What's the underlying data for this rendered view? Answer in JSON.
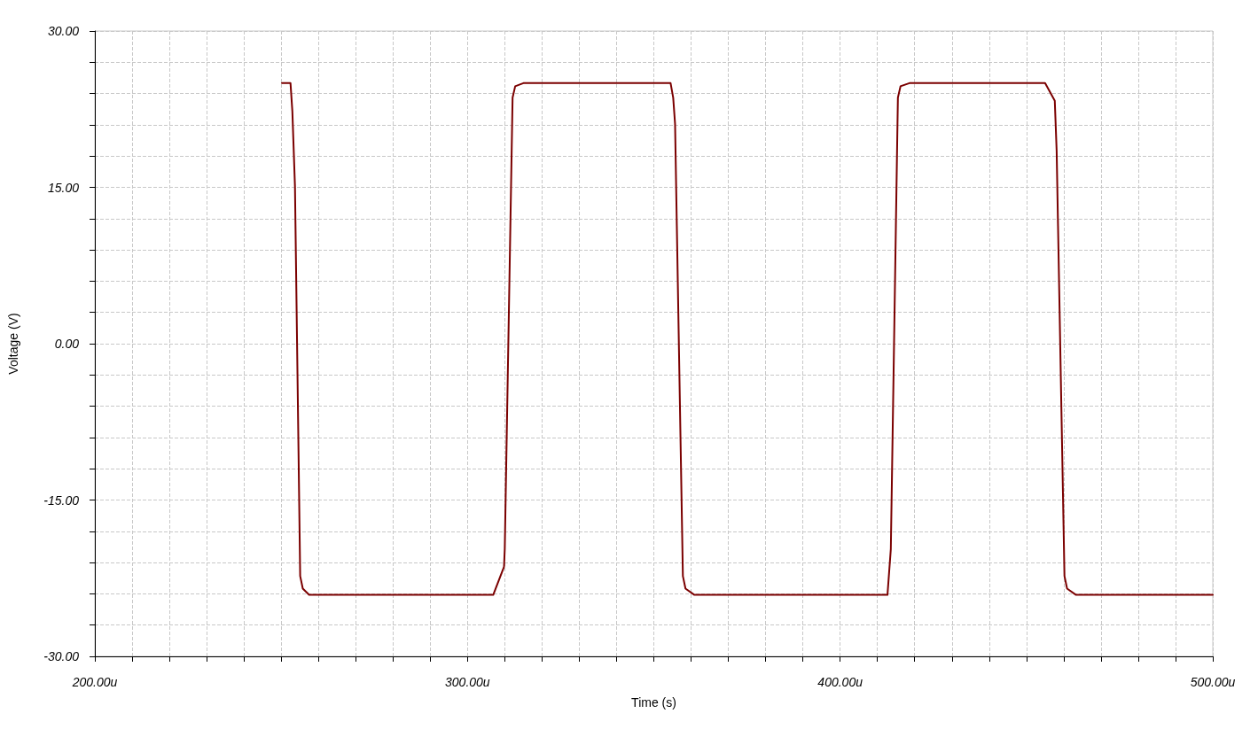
{
  "chart_data": {
    "type": "line",
    "xlabel": "Time (s)",
    "ylabel": "Voltage (V)",
    "xlim": [
      200,
      500
    ],
    "xticks": [
      {
        "value": 200,
        "label": "200.00u"
      },
      {
        "value": 210,
        "label": null
      },
      {
        "value": 220,
        "label": null
      },
      {
        "value": 230,
        "label": null
      },
      {
        "value": 240,
        "label": null
      },
      {
        "value": 250,
        "label": null
      },
      {
        "value": 260,
        "label": null
      },
      {
        "value": 270,
        "label": null
      },
      {
        "value": 280,
        "label": null
      },
      {
        "value": 290,
        "label": null
      },
      {
        "value": 300,
        "label": "300.00u"
      },
      {
        "value": 310,
        "label": null
      },
      {
        "value": 320,
        "label": null
      },
      {
        "value": 330,
        "label": null
      },
      {
        "value": 340,
        "label": null
      },
      {
        "value": 350,
        "label": null
      },
      {
        "value": 360,
        "label": null
      },
      {
        "value": 370,
        "label": null
      },
      {
        "value": 380,
        "label": null
      },
      {
        "value": 390,
        "label": null
      },
      {
        "value": 400,
        "label": "400.00u"
      },
      {
        "value": 410,
        "label": null
      },
      {
        "value": 420,
        "label": null
      },
      {
        "value": 430,
        "label": null
      },
      {
        "value": 440,
        "label": null
      },
      {
        "value": 450,
        "label": null
      },
      {
        "value": 460,
        "label": null
      },
      {
        "value": 470,
        "label": null
      },
      {
        "value": 480,
        "label": null
      },
      {
        "value": 490,
        "label": null
      },
      {
        "value": 500,
        "label": "500.00u"
      }
    ],
    "ylim": [
      -30,
      30
    ],
    "yticks": [
      {
        "value": -30,
        "label": "-30.00"
      },
      {
        "value": -27,
        "label": null
      },
      {
        "value": -24,
        "label": null
      },
      {
        "value": -21,
        "label": null
      },
      {
        "value": -18,
        "label": null
      },
      {
        "value": -15,
        "label": "-15.00"
      },
      {
        "value": -12,
        "label": null
      },
      {
        "value": -9,
        "label": null
      },
      {
        "value": -6,
        "label": null
      },
      {
        "value": -3,
        "label": null
      },
      {
        "value": 0,
        "label": "0.00"
      },
      {
        "value": 3,
        "label": null
      },
      {
        "value": 6,
        "label": null
      },
      {
        "value": 9,
        "label": null
      },
      {
        "value": 12,
        "label": null
      },
      {
        "value": 15,
        "label": "15.00"
      },
      {
        "value": 18,
        "label": null
      },
      {
        "value": 21,
        "label": null
      },
      {
        "value": 24,
        "label": null
      },
      {
        "value": 27,
        "label": null
      },
      {
        "value": 30,
        "label": "30.00"
      }
    ],
    "grid": true,
    "marker": "none",
    "line_style": "solid",
    "series": [
      {
        "color": "#7b0000",
        "x": [
          250.2,
          252.5,
          253.0,
          253.7,
          255.1,
          255.8,
          257.5,
          306.9,
          309.8,
          310.0,
          312.1,
          312.8,
          315.0,
          354.5,
          355.2,
          355.7,
          357.8,
          358.5,
          360.9,
          412.7,
          413.6,
          415.5,
          416.2,
          418.6,
          455.0,
          457.6,
          458.1,
          460.2,
          460.9,
          463.3,
          500
        ],
        "values": [
          25,
          25,
          22.3,
          15.1,
          -22.3,
          -23.5,
          -24.1,
          -24.1,
          -21.4,
          -19.7,
          23.6,
          24.7,
          25,
          25,
          23.6,
          21.1,
          -22.3,
          -23.5,
          -24.1,
          -24.1,
          -19.7,
          23.6,
          24.7,
          25,
          25,
          23.3,
          18.5,
          -22.3,
          -23.5,
          -24.1,
          -24.1
        ]
      }
    ]
  }
}
